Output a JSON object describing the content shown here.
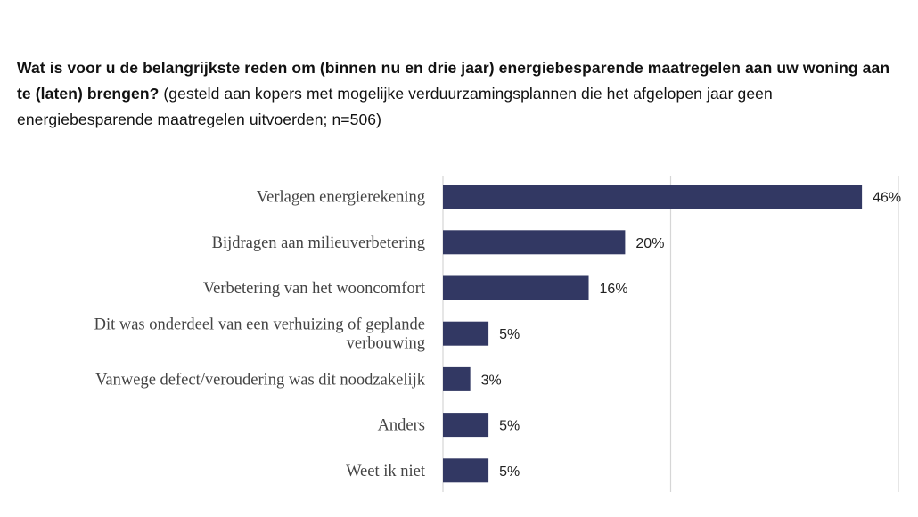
{
  "title": {
    "bold": "Wat is voor u de belangrijkste reden om (binnen nu en drie jaar) energiebesparende maatregelen aan uw woning aan te (laten) brengen?",
    "regular": " (gesteld aan kopers met mogelijke verduurzamingsplannen die het afgelopen jaar geen energiebesparende maatregelen uitvoerden; n=506)"
  },
  "chart_data": {
    "type": "bar",
    "orientation": "horizontal",
    "categories": [
      [
        "Verlagen energierekening"
      ],
      [
        "Bijdragen aan milieuverbetering"
      ],
      [
        "Verbetering van het wooncomfort"
      ],
      [
        "Dit was onderdeel van een verhuizing of geplande",
        "verbouwing"
      ],
      [
        "Vanwege defect/veroudering was dit noodzakelijk"
      ],
      [
        "Anders"
      ],
      [
        "Weet ik niet"
      ]
    ],
    "values": [
      46,
      20,
      16,
      5,
      3,
      5,
      5
    ],
    "value_labels": [
      "46%",
      "20%",
      "16%",
      "5%",
      "3%",
      "5%",
      "5%"
    ],
    "xlim": [
      0,
      50
    ],
    "grid": true,
    "colors": {
      "bar": "#323863",
      "grid": "#d6d6d6"
    }
  }
}
